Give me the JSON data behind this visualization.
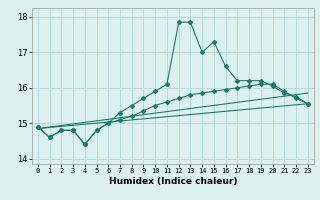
{
  "xlabel": "Humidex (Indice chaleur)",
  "xlim": [
    -0.5,
    23.5
  ],
  "ylim": [
    13.85,
    18.25
  ],
  "yticks": [
    14,
    15,
    16,
    17,
    18
  ],
  "xticks": [
    0,
    1,
    2,
    3,
    4,
    5,
    6,
    7,
    8,
    9,
    10,
    11,
    12,
    13,
    14,
    15,
    16,
    17,
    18,
    19,
    20,
    21,
    22,
    23
  ],
  "bg_color": "#ddf0f0",
  "grid_color": "#b8dada",
  "line_color": "#1a7a6e",
  "lines": [
    {
      "x": [
        0,
        1,
        2,
        3,
        4,
        5,
        6,
        7,
        8,
        9,
        10,
        11,
        12,
        13,
        14,
        15,
        16,
        17,
        18,
        19,
        20,
        21,
        22,
        23
      ],
      "y": [
        14.9,
        14.6,
        14.8,
        14.8,
        14.4,
        14.8,
        15.0,
        15.3,
        15.5,
        15.7,
        15.9,
        16.1,
        17.85,
        17.85,
        17.0,
        17.3,
        16.6,
        16.2,
        16.2,
        16.2,
        16.05,
        15.85,
        15.75,
        15.55
      ],
      "marker": true
    },
    {
      "x": [
        0,
        1,
        2,
        3,
        4,
        5,
        6,
        7,
        8,
        9,
        10,
        11,
        12,
        13,
        14,
        15,
        16,
        17,
        18,
        19,
        20,
        21,
        22,
        23
      ],
      "y": [
        14.9,
        14.6,
        14.8,
        14.8,
        14.4,
        14.8,
        15.0,
        15.1,
        15.2,
        15.35,
        15.5,
        15.6,
        15.7,
        15.8,
        15.85,
        15.9,
        15.95,
        16.0,
        16.05,
        16.1,
        16.1,
        15.9,
        15.7,
        15.55
      ],
      "marker": true
    },
    {
      "x": [
        0,
        23
      ],
      "y": [
        14.85,
        15.85
      ],
      "marker": false
    },
    {
      "x": [
        0,
        23
      ],
      "y": [
        14.85,
        15.55
      ],
      "marker": false
    }
  ]
}
